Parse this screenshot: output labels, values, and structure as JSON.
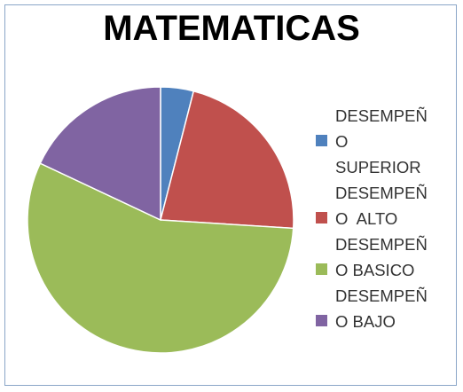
{
  "chart_data": {
    "type": "pie",
    "title": "MATEMATICAS",
    "categories": [
      "DESEMPEÑO SUPERIOR",
      "DESEMPEÑO  ALTO",
      "DESEMPEÑO BASICO",
      "DESEMPEÑO BAJO"
    ],
    "values": [
      4,
      22,
      56,
      18
    ],
    "colors": [
      "#4f81bd",
      "#c0504d",
      "#9bbb59",
      "#8064a2"
    ],
    "legend_position": "right",
    "legend_lines": [
      [
        "DESEMPEÑ",
        "O",
        "SUPERIOR"
      ],
      [
        "DESEMPEÑ",
        "O  ALTO"
      ],
      [
        "DESEMPEÑ",
        "O BASICO"
      ],
      [
        "DESEMPEÑ",
        "O BAJO"
      ]
    ]
  }
}
